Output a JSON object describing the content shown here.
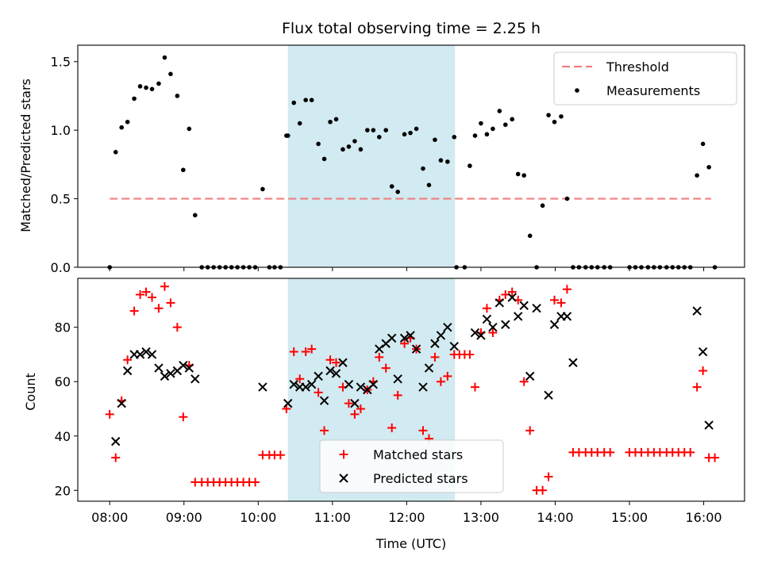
{
  "title": "Flux total observing time = 2.25 h",
  "colors": {
    "threshold": "#f08080",
    "measurement": "#000000",
    "matched": "#ff0000",
    "predicted": "#000000",
    "shade": "#add8e6"
  },
  "chart_data": [
    {
      "type": "scatter",
      "panel": "top",
      "ylabel": "Matched/Predicted stars",
      "xlim": [
        7.57,
        16.55
      ],
      "ylim": [
        0,
        1.62
      ],
      "yticks": [
        0.0,
        0.5,
        1.0,
        1.5
      ],
      "ytick_labels": [
        "0.0",
        "0.5",
        "1.0",
        "1.5"
      ],
      "shaded_span": [
        10.4,
        12.65
      ],
      "legend": [
        "Threshold",
        "Measurements"
      ],
      "legend_position": "upper right",
      "series": [
        {
          "name": "Threshold",
          "style": "dashed-line",
          "x": [
            8.0,
            16.1
          ],
          "y": [
            0.5,
            0.5
          ]
        },
        {
          "name": "Measurements",
          "style": "dot",
          "x": [
            8.0,
            8.08,
            8.16,
            8.24,
            8.33,
            8.41,
            8.49,
            8.57,
            8.66,
            8.74,
            8.82,
            8.91,
            8.99,
            9.07,
            9.15,
            9.24,
            9.32,
            9.4,
            9.48,
            9.56,
            9.64,
            9.72,
            9.8,
            9.88,
            9.96,
            10.06,
            10.15,
            10.22,
            10.3,
            10.38,
            10.4,
            10.48,
            10.56,
            10.64,
            10.72,
            10.81,
            10.89,
            10.97,
            11.05,
            11.14,
            11.22,
            11.3,
            11.38,
            11.47,
            11.55,
            11.63,
            11.72,
            11.8,
            11.88,
            11.97,
            12.05,
            12.13,
            12.22,
            12.3,
            12.38,
            12.46,
            12.55,
            12.64,
            12.67,
            12.78,
            12.85,
            12.92,
            13.0,
            13.08,
            13.16,
            13.25,
            13.33,
            13.42,
            13.5,
            13.58,
            13.66,
            13.75,
            13.83,
            13.91,
            13.99,
            14.08,
            14.16,
            14.24,
            14.32,
            14.41,
            14.49,
            14.57,
            14.66,
            14.74,
            15.0,
            15.08,
            15.16,
            15.25,
            15.33,
            15.41,
            15.5,
            15.58,
            15.66,
            15.74,
            15.82,
            15.91,
            15.99,
            16.07,
            16.15
          ],
          "y": [
            0.0,
            0.84,
            1.02,
            1.06,
            1.23,
            1.32,
            1.31,
            1.3,
            1.34,
            1.53,
            1.41,
            1.25,
            0.71,
            1.01,
            0.38,
            0.0,
            0.0,
            0.0,
            0.0,
            0.0,
            0.0,
            0.0,
            0.0,
            0.0,
            0.0,
            0.57,
            0.0,
            0.0,
            0.0,
            0.96,
            0.96,
            1.2,
            1.05,
            1.22,
            1.22,
            0.9,
            0.79,
            1.06,
            1.08,
            0.86,
            0.88,
            0.92,
            0.86,
            1.0,
            1.0,
            0.95,
            1.0,
            0.59,
            0.55,
            0.97,
            0.98,
            1.01,
            0.72,
            0.6,
            0.93,
            0.78,
            0.77,
            0.95,
            0.0,
            0.0,
            0.74,
            0.96,
            1.05,
            0.97,
            1.01,
            1.14,
            1.04,
            1.08,
            0.68,
            0.67,
            0.23,
            0.0,
            0.45,
            1.11,
            1.06,
            1.1,
            0.5,
            0.0,
            0.0,
            0.0,
            0.0,
            0.0,
            0.0,
            0.0,
            0.0,
            0.0,
            0.0,
            0.0,
            0.0,
            0.0,
            0.0,
            0.0,
            0.0,
            0.0,
            0.0,
            0.67,
            0.9,
            0.73,
            0.0
          ]
        }
      ]
    },
    {
      "type": "scatter",
      "panel": "bottom",
      "ylabel": "Count",
      "xlabel": "Time (UTC)",
      "xlim": [
        7.57,
        16.55
      ],
      "ylim": [
        16,
        98
      ],
      "yticks": [
        20,
        40,
        60,
        80
      ],
      "ytick_labels": [
        "20",
        "40",
        "60",
        "80"
      ],
      "xticks": [
        8,
        9,
        10,
        11,
        12,
        13,
        14,
        15,
        16
      ],
      "xtick_labels": [
        "08:00",
        "09:00",
        "10:00",
        "11:00",
        "12:00",
        "13:00",
        "14:00",
        "15:00",
        "16:00"
      ],
      "shaded_span": [
        10.4,
        12.65
      ],
      "legend": [
        "Matched stars",
        "Predicted stars"
      ],
      "legend_position": "lower center",
      "series": [
        {
          "name": "Matched stars",
          "marker": "plus",
          "x": [
            8.0,
            8.08,
            8.16,
            8.24,
            8.33,
            8.41,
            8.49,
            8.57,
            8.66,
            8.74,
            8.82,
            8.91,
            8.99,
            9.07,
            9.15,
            9.24,
            9.32,
            9.4,
            9.48,
            9.56,
            9.64,
            9.72,
            9.8,
            9.88,
            9.96,
            10.06,
            10.15,
            10.22,
            10.3,
            10.38,
            10.48,
            10.56,
            10.64,
            10.72,
            10.81,
            10.89,
            10.97,
            11.05,
            11.14,
            11.22,
            11.3,
            11.38,
            11.47,
            11.55,
            11.63,
            11.72,
            11.8,
            11.88,
            11.97,
            12.05,
            12.13,
            12.22,
            12.3,
            12.38,
            12.46,
            12.55,
            12.64,
            12.71,
            12.78,
            12.85,
            12.92,
            13.0,
            13.08,
            13.16,
            13.25,
            13.33,
            13.42,
            13.5,
            13.58,
            13.66,
            13.75,
            13.83,
            13.91,
            13.99,
            14.08,
            14.16,
            14.24,
            14.32,
            14.41,
            14.49,
            14.57,
            14.66,
            14.74,
            15.0,
            15.08,
            15.16,
            15.25,
            15.33,
            15.41,
            15.5,
            15.58,
            15.66,
            15.74,
            15.82,
            15.91,
            15.99,
            16.07,
            16.15
          ],
          "y": [
            48,
            32,
            53,
            68,
            86,
            92,
            93,
            91,
            87,
            95,
            89,
            80,
            47,
            66,
            23,
            23,
            23,
            23,
            23,
            23,
            23,
            23,
            23,
            23,
            23,
            33,
            33,
            33,
            33,
            50,
            71,
            61,
            71,
            72,
            56,
            42,
            68,
            67,
            58,
            52,
            48,
            50,
            57,
            60,
            69,
            65,
            43,
            55,
            74,
            76,
            72,
            42,
            39,
            69,
            60,
            62,
            70,
            70,
            70,
            70,
            58,
            78,
            87,
            78,
            90,
            92,
            93,
            90,
            60,
            42,
            20,
            20,
            25,
            90,
            89,
            94,
            34,
            34,
            34,
            34,
            34,
            34,
            34,
            34,
            34,
            34,
            34,
            34,
            34,
            34,
            34,
            34,
            34,
            34,
            58,
            64,
            32,
            32
          ]
        },
        {
          "name": "Predicted stars",
          "marker": "x",
          "x": [
            8.08,
            8.16,
            8.24,
            8.33,
            8.41,
            8.49,
            8.57,
            8.66,
            8.74,
            8.82,
            8.91,
            8.99,
            9.07,
            9.15,
            10.06,
            10.4,
            10.48,
            10.56,
            10.64,
            10.72,
            10.81,
            10.89,
            10.97,
            11.05,
            11.14,
            11.22,
            11.3,
            11.38,
            11.47,
            11.55,
            11.63,
            11.72,
            11.8,
            11.88,
            11.97,
            12.05,
            12.13,
            12.22,
            12.3,
            12.38,
            12.46,
            12.55,
            12.64,
            12.92,
            13.0,
            13.08,
            13.16,
            13.25,
            13.33,
            13.42,
            13.5,
            13.58,
            13.66,
            13.75,
            13.91,
            13.99,
            14.08,
            14.16,
            14.24,
            15.91,
            15.99,
            16.07
          ],
          "y": [
            38,
            52,
            64,
            70,
            70,
            71,
            70,
            65,
            62,
            63,
            64,
            66,
            65,
            61,
            58,
            52,
            59,
            58,
            58,
            59,
            62,
            53,
            64,
            63,
            67,
            59,
            52,
            58,
            57,
            59,
            72,
            74,
            76,
            61,
            76,
            77,
            72,
            58,
            65,
            74,
            77,
            80,
            73,
            78,
            77,
            83,
            80,
            89,
            81,
            91,
            84,
            88,
            62,
            87,
            55,
            81,
            84,
            84,
            67,
            86,
            71,
            44
          ]
        }
      ]
    }
  ]
}
